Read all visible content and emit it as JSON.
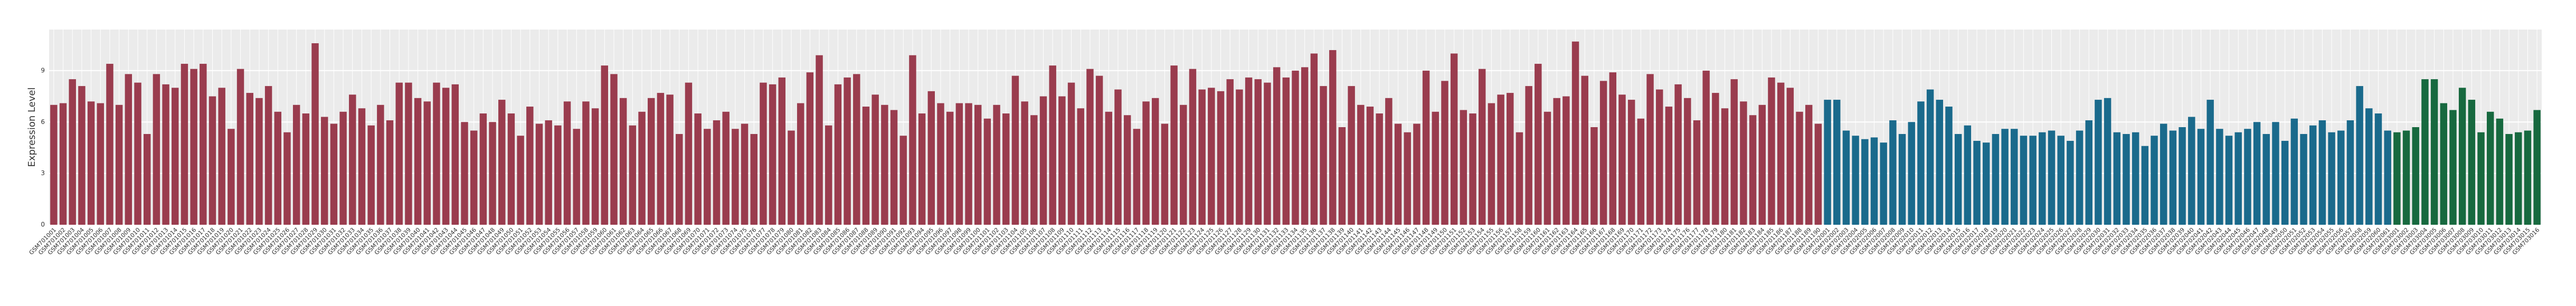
{
  "chart_data": {
    "type": "bar",
    "y_label": "Expression Level",
    "ylim": [
      0,
      11.4
    ],
    "yticks": [
      0,
      3,
      6,
      9
    ],
    "grid": true,
    "panel_color": "#ebebeb",
    "series": [
      {
        "color": "#9a3c4e",
        "categories": [
          "GSM701001",
          "GSM701002",
          "GSM701003",
          "GSM701004",
          "GSM701005",
          "GSM701006",
          "GSM701007",
          "GSM701008",
          "GSM701009",
          "GSM701010",
          "GSM701011",
          "GSM701012",
          "GSM701013",
          "GSM701014",
          "GSM701015",
          "GSM701016",
          "GSM701017",
          "GSM701018",
          "GSM701019",
          "GSM701020",
          "GSM701021",
          "GSM701022",
          "GSM701023",
          "GSM701024",
          "GSM701025",
          "GSM701026",
          "GSM701027",
          "GSM701028",
          "GSM701029",
          "GSM701030",
          "GSM701031",
          "GSM701032",
          "GSM701033",
          "GSM701034",
          "GSM701035",
          "GSM701036",
          "GSM701037",
          "GSM701038",
          "GSM701039",
          "GSM701040",
          "GSM701041",
          "GSM701042",
          "GSM701043",
          "GSM701044",
          "GSM701045",
          "GSM701046",
          "GSM701047",
          "GSM701048",
          "GSM701049",
          "GSM701050",
          "GSM701051",
          "GSM701052",
          "GSM701053",
          "GSM701054",
          "GSM701055",
          "GSM701056",
          "GSM701057",
          "GSM701058",
          "GSM701059",
          "GSM701060",
          "GSM701061",
          "GSM701062",
          "GSM701063",
          "GSM701064",
          "GSM701065",
          "GSM701066",
          "GSM701067",
          "GSM701068",
          "GSM701069",
          "GSM701070",
          "GSM701071",
          "GSM701072",
          "GSM701073",
          "GSM701074",
          "GSM701075",
          "GSM701076",
          "GSM701077",
          "GSM701078",
          "GSM701079",
          "GSM701080",
          "GSM701081",
          "GSM701082",
          "GSM701083",
          "GSM701084",
          "GSM701085",
          "GSM701086",
          "GSM701087",
          "GSM701088",
          "GSM701089",
          "GSM701090",
          "GSM701091",
          "GSM701092",
          "GSM701093",
          "GSM701094",
          "GSM701095",
          "GSM701096",
          "GSM701097",
          "GSM701098",
          "GSM701099",
          "GSM701100",
          "GSM701101",
          "GSM701102",
          "GSM701103",
          "GSM701104",
          "GSM701105",
          "GSM701106",
          "GSM701107",
          "GSM701108",
          "GSM701109",
          "GSM701110",
          "GSM701111",
          "GSM701112",
          "GSM701113",
          "GSM701114",
          "GSM701115",
          "GSM701116",
          "GSM701117",
          "GSM701118",
          "GSM701119",
          "GSM701120",
          "GSM701121",
          "GSM701122",
          "GSM701123",
          "GSM701124",
          "GSM701125",
          "GSM701126",
          "GSM701127",
          "GSM701128",
          "GSM701129",
          "GSM701130",
          "GSM701131",
          "GSM701132",
          "GSM701133",
          "GSM701134",
          "GSM701135",
          "GSM701136",
          "GSM701137",
          "GSM701138",
          "GSM701139",
          "GSM701140",
          "GSM701141",
          "GSM701142",
          "GSM701143",
          "GSM701144",
          "GSM701145",
          "GSM701146",
          "GSM701147",
          "GSM701148",
          "GSM701149",
          "GSM701150",
          "GSM701151",
          "GSM701152",
          "GSM701153",
          "GSM701154",
          "GSM701155",
          "GSM701156",
          "GSM701157",
          "GSM701158",
          "GSM701159",
          "GSM701160",
          "GSM701161",
          "GSM701162",
          "GSM701163",
          "GSM701164",
          "GSM701165",
          "GSM701166",
          "GSM701167",
          "GSM701168",
          "GSM701169",
          "GSM701170",
          "GSM701171",
          "GSM701172",
          "GSM701173",
          "GSM701174",
          "GSM701175",
          "GSM701176",
          "GSM701177",
          "GSM701178",
          "GSM701179",
          "GSM701180",
          "GSM701181",
          "GSM701182",
          "GSM701183",
          "GSM701184",
          "GSM701185",
          "GSM701186",
          "GSM701187",
          "GSM701188",
          "GSM701189",
          "GSM701190"
        ],
        "values": [
          7.0,
          7.1,
          8.5,
          8.1,
          7.2,
          7.1,
          9.4,
          7.0,
          8.8,
          8.3,
          5.3,
          8.8,
          8.2,
          8.0,
          9.4,
          9.1,
          9.4,
          7.5,
          8.0,
          5.6,
          9.1,
          7.7,
          7.4,
          8.1,
          6.6,
          5.4,
          7.0,
          6.5,
          10.6,
          6.3,
          5.9,
          6.6,
          7.6,
          6.8,
          5.8,
          7.0,
          6.1,
          8.3,
          8.3,
          7.4,
          7.2,
          8.3,
          8.0,
          8.2,
          6.0,
          5.5,
          6.5,
          6.0,
          7.3,
          6.5,
          5.2,
          6.9,
          5.9,
          6.1,
          5.8,
          7.2,
          5.6,
          7.2,
          6.8,
          9.3,
          8.8,
          7.4,
          5.8,
          6.6,
          7.4,
          7.7,
          7.6,
          5.3,
          8.3,
          6.5,
          5.6,
          6.1,
          6.6,
          5.6,
          5.9,
          5.3,
          8.3,
          8.2,
          8.6,
          5.5,
          7.1,
          8.9,
          9.9,
          5.8,
          8.2,
          8.6,
          8.8,
          6.9,
          7.6,
          7.0,
          6.7,
          5.2,
          9.9,
          6.5,
          7.8,
          7.1,
          6.6,
          7.1,
          7.1,
          7.0,
          6.2,
          7.0,
          6.5,
          8.7,
          7.2,
          6.4,
          7.5,
          9.3,
          7.5,
          8.3,
          6.8,
          9.1,
          8.7,
          6.6,
          7.9,
          6.4,
          5.6,
          7.2,
          7.4,
          5.9,
          9.3,
          7.0,
          9.1,
          7.9,
          8.0,
          7.8,
          8.5,
          7.9,
          8.6,
          8.5,
          8.3,
          9.2,
          8.6,
          9.0,
          9.2,
          10.0,
          8.1,
          10.2,
          5.7,
          8.1,
          7.0,
          6.9,
          6.5,
          7.4,
          5.9,
          5.4,
          5.9,
          9.0,
          6.6,
          8.4,
          10.0,
          6.7,
          6.5,
          9.1,
          7.1,
          7.6,
          7.7,
          5.4,
          8.1,
          9.4,
          6.6,
          7.4,
          7.5,
          10.7,
          8.7,
          5.7,
          8.4,
          8.9,
          7.6,
          7.3,
          6.2,
          8.8,
          7.9,
          6.9,
          8.2,
          7.4,
          6.1,
          9.0,
          7.7,
          6.8,
          8.5,
          7.2,
          6.4,
          7.0,
          8.6,
          8.3,
          8.0,
          6.6,
          7.0,
          5.9
        ]
      },
      {
        "color": "#1a6a8c",
        "categories": [
          "GSM702001",
          "GSM702002",
          "GSM702003",
          "GSM702004",
          "GSM702005",
          "GSM702006",
          "GSM702007",
          "GSM702008",
          "GSM702009",
          "GSM702010",
          "GSM702011",
          "GSM702012",
          "GSM702013",
          "GSM702014",
          "GSM702015",
          "GSM702016",
          "GSM702017",
          "GSM702018",
          "GSM702019",
          "GSM702020",
          "GSM702021",
          "GSM702022",
          "GSM702023",
          "GSM702024",
          "GSM702025",
          "GSM702026",
          "GSM702027",
          "GSM702028",
          "GSM702029",
          "GSM702030",
          "GSM702031",
          "GSM702032",
          "GSM702033",
          "GSM702034",
          "GSM702035",
          "GSM702036",
          "GSM702037",
          "GSM702038",
          "GSM702039",
          "GSM702040",
          "GSM702041",
          "GSM702042",
          "GSM702043",
          "GSM702044",
          "GSM702045",
          "GSM702046",
          "GSM702047",
          "GSM702048",
          "GSM702049",
          "GSM702050",
          "GSM702051",
          "GSM702052",
          "GSM702053",
          "GSM702054",
          "GSM702055",
          "GSM702056",
          "GSM702057",
          "GSM702058",
          "GSM702059",
          "GSM702060",
          "GSM702061"
        ],
        "values": [
          7.3,
          7.3,
          5.5,
          5.2,
          5.0,
          5.1,
          4.8,
          6.1,
          5.3,
          6.0,
          7.2,
          7.9,
          7.3,
          6.9,
          5.3,
          5.8,
          4.9,
          4.8,
          5.3,
          5.6,
          5.6,
          5.2,
          5.2,
          5.4,
          5.5,
          5.2,
          4.9,
          5.5,
          6.1,
          7.3,
          7.4,
          5.4,
          5.3,
          5.4,
          4.6,
          5.2,
          5.9,
          5.5,
          5.7,
          6.3,
          5.6,
          7.3,
          5.6,
          5.2,
          5.4,
          5.6,
          6.0,
          5.3,
          6.0,
          4.9,
          6.2,
          5.3,
          5.8,
          6.1,
          5.4,
          5.5,
          6.1,
          8.1,
          6.8,
          6.5,
          5.5
        ]
      },
      {
        "color": "#17693f",
        "categories": [
          "GSM703001",
          "GSM703002",
          "GSM703003",
          "GSM703004",
          "GSM703005",
          "GSM703006",
          "GSM703007",
          "GSM703008",
          "GSM703009",
          "GSM703010",
          "GSM703011",
          "GSM703012",
          "GSM703013",
          "GSM703014",
          "GSM703015",
          "GSM703016"
        ],
        "values": [
          5.4,
          5.5,
          5.7,
          8.5,
          8.5,
          7.1,
          6.7,
          8.0,
          7.3,
          5.4,
          6.6,
          6.2,
          5.3,
          5.4,
          5.5,
          6.7
        ]
      }
    ]
  }
}
